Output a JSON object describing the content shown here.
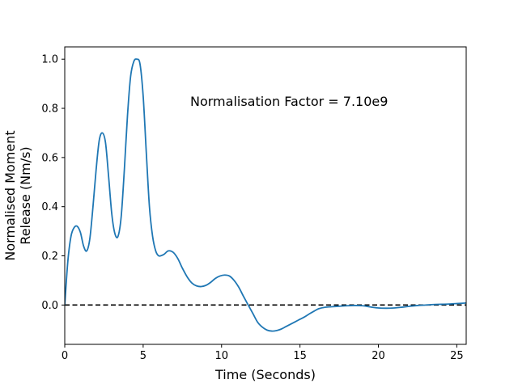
{
  "chart_data": {
    "type": "line",
    "title": "",
    "xlabel": "Time (Seconds)",
    "ylabel_lines": [
      "Normalised Moment",
      "Release (Nm/s)"
    ],
    "xlim": [
      0,
      25.6
    ],
    "ylim": [
      -0.16,
      1.05
    ],
    "xticks": [
      0,
      5,
      10,
      15,
      20,
      25
    ],
    "yticks": [
      0.0,
      0.2,
      0.4,
      0.6,
      0.8,
      1.0
    ],
    "ytick_labels": [
      "0.0",
      "0.2",
      "0.4",
      "0.6",
      "0.8",
      "1.0"
    ],
    "grid": false,
    "annotation": "Normalisation Factor = 7.10e9",
    "annotation_at": [
      8.0,
      0.81
    ],
    "reference_line": {
      "y": 0.0,
      "style": "dashed",
      "color": "#000000"
    },
    "series": [
      {
        "color": "#1f77b4",
        "x": [
          0,
          0.2,
          0.4,
          0.6,
          0.8,
          1.0,
          1.2,
          1.4,
          1.6,
          1.8,
          2.0,
          2.2,
          2.4,
          2.6,
          2.8,
          3.0,
          3.2,
          3.4,
          3.6,
          3.8,
          4.0,
          4.2,
          4.4,
          4.6,
          4.8,
          5.0,
          5.2,
          5.4,
          5.6,
          5.8,
          6.0,
          6.3,
          6.6,
          6.9,
          7.2,
          7.5,
          7.8,
          8.1,
          8.4,
          8.7,
          9.0,
          9.3,
          9.6,
          9.9,
          10.2,
          10.5,
          10.8,
          11.1,
          11.4,
          11.7,
          12.0,
          12.3,
          12.6,
          12.9,
          13.2,
          13.5,
          13.8,
          14.1,
          14.4,
          14.7,
          15.0,
          15.3,
          15.6,
          15.9,
          16.2,
          16.6,
          17.0,
          17.5,
          18.0,
          18.5,
          19.0,
          19.5,
          20.0,
          20.5,
          21.0,
          21.5,
          22.0,
          22.5,
          23.0,
          23.5,
          24.0,
          24.5,
          25.0,
          25.6
        ],
        "y": [
          0.0,
          0.18,
          0.28,
          0.315,
          0.32,
          0.295,
          0.24,
          0.22,
          0.27,
          0.4,
          0.55,
          0.67,
          0.7,
          0.66,
          0.52,
          0.37,
          0.29,
          0.28,
          0.36,
          0.55,
          0.77,
          0.93,
          0.99,
          1.0,
          0.98,
          0.85,
          0.62,
          0.4,
          0.28,
          0.22,
          0.2,
          0.205,
          0.22,
          0.215,
          0.19,
          0.15,
          0.115,
          0.09,
          0.078,
          0.075,
          0.08,
          0.092,
          0.108,
          0.118,
          0.122,
          0.118,
          0.1,
          0.072,
          0.035,
          0.0,
          -0.035,
          -0.07,
          -0.09,
          -0.102,
          -0.106,
          -0.104,
          -0.098,
          -0.088,
          -0.078,
          -0.068,
          -0.058,
          -0.048,
          -0.036,
          -0.025,
          -0.015,
          -0.009,
          -0.007,
          -0.005,
          -0.003,
          -0.002,
          -0.003,
          -0.008,
          -0.012,
          -0.013,
          -0.012,
          -0.009,
          -0.005,
          -0.002,
          0.0,
          0.002,
          0.003,
          0.004,
          0.006,
          0.008
        ]
      }
    ]
  }
}
